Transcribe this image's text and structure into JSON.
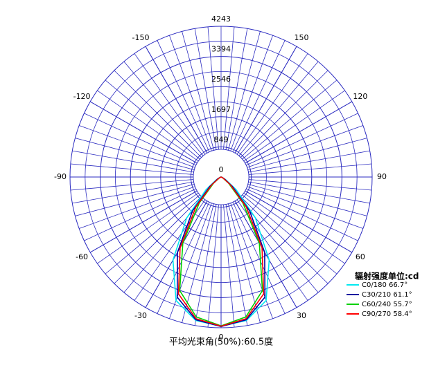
{
  "chart_data": {
    "type": "polar",
    "title": "平均光束角(50%):60.5度",
    "legend_title": "辐射强度单位:cd",
    "x": [
      -90,
      -80,
      -70,
      -60,
      -50,
      -40,
      -30,
      -20,
      -10,
      0,
      10,
      20,
      30,
      40,
      50,
      60,
      70,
      80,
      90
    ],
    "series": [
      {
        "name": "C0/180 66.7°",
        "color": "#00e8f0",
        "values": [
          0,
          10,
          40,
          150,
          550,
          1500,
          2700,
          3700,
          4100,
          4200,
          4100,
          3700,
          2700,
          1500,
          550,
          150,
          40,
          10,
          0
        ]
      },
      {
        "name": "C30/210 61.1°",
        "color": "#0000a0",
        "values": [
          0,
          5,
          30,
          110,
          420,
          1250,
          2450,
          3600,
          4080,
          4210,
          4080,
          3600,
          2450,
          1250,
          420,
          110,
          30,
          5,
          0
        ]
      },
      {
        "name": "C60/240 55.7°",
        "color": "#00d000",
        "values": [
          0,
          0,
          15,
          60,
          280,
          950,
          2150,
          3400,
          4000,
          4190,
          4000,
          3400,
          2150,
          950,
          280,
          60,
          15,
          0,
          0
        ]
      },
      {
        "name": "C90/270 58.4°",
        "color": "#ff0000",
        "values": [
          0,
          0,
          20,
          80,
          350,
          1100,
          2300,
          3500,
          4050,
          4200,
          4050,
          3500,
          2300,
          1100,
          350,
          80,
          20,
          0,
          0
        ]
      }
    ],
    "rlim": [
      0,
      4243
    ],
    "rticks": [
      0,
      849,
      1697,
      2546,
      3394,
      4243
    ],
    "angle_ticks": [
      -150,
      -120,
      -90,
      -60,
      -30,
      0,
      30,
      60,
      90,
      120,
      150
    ],
    "grid_color": "#2a2ac0"
  }
}
